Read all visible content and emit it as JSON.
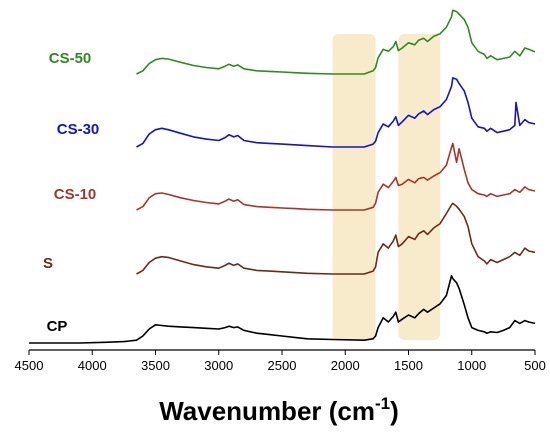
{
  "chart_data": {
    "type": "line",
    "xlabel": "Wavenumber (cm",
    "xlabel_sup": "-1",
    "xlabel_end": ")",
    "xlim": [
      4500,
      500
    ],
    "x_reversed": true,
    "y_axis_visible": false,
    "grid": false,
    "xticks": [
      4500,
      4000,
      3500,
      3000,
      2500,
      2000,
      1500,
      1000,
      500
    ],
    "xtick_labels": [
      "4500",
      "4000",
      "3500",
      "3000",
      "2500",
      "2000",
      "1500",
      "1000",
      "500"
    ],
    "highlight_regions": [
      {
        "x": [
          2100,
          1760
        ],
        "color": "#f8ebcb"
      },
      {
        "x": [
          1580,
          1250
        ],
        "color": "#f8ebcb"
      }
    ],
    "series": [
      {
        "name": "CS-50",
        "color": "#2e8b1e",
        "x": [
          3650,
          3600,
          3550,
          3500,
          3450,
          3400,
          3300,
          3200,
          3100,
          3000,
          2950,
          2920,
          2880,
          2850,
          2800,
          2700,
          2600,
          2500,
          2400,
          2300,
          2100,
          1850,
          1780,
          1760,
          1740,
          1700,
          1660,
          1620,
          1600,
          1580,
          1550,
          1500,
          1450,
          1420,
          1380,
          1350,
          1300,
          1250,
          1200,
          1160,
          1150,
          1120,
          1100,
          1060,
          1030,
          1000,
          950,
          900,
          880,
          850,
          800,
          750,
          700,
          660,
          620,
          580,
          550,
          500
        ],
        "y": [
          0.0,
          0.05,
          0.16,
          0.22,
          0.24,
          0.23,
          0.18,
          0.13,
          0.1,
          0.08,
          0.12,
          0.15,
          0.12,
          0.14,
          0.08,
          0.05,
          0.04,
          0.03,
          0.02,
          0.01,
          0.0,
          0.0,
          0.05,
          0.1,
          0.25,
          0.38,
          0.35,
          0.42,
          0.5,
          0.36,
          0.4,
          0.48,
          0.45,
          0.52,
          0.55,
          0.5,
          0.58,
          0.62,
          0.72,
          0.88,
          0.98,
          0.96,
          0.92,
          0.84,
          0.72,
          0.48,
          0.35,
          0.3,
          0.24,
          0.28,
          0.22,
          0.24,
          0.26,
          0.35,
          0.28,
          0.4,
          0.38,
          0.34
        ]
      },
      {
        "name": "CS-30",
        "color": "#1212cf",
        "x": [
          3650,
          3600,
          3550,
          3500,
          3450,
          3400,
          3300,
          3200,
          3100,
          3000,
          2950,
          2920,
          2880,
          2850,
          2800,
          2700,
          2600,
          2500,
          2400,
          2300,
          2100,
          1850,
          1780,
          1760,
          1740,
          1700,
          1660,
          1620,
          1600,
          1580,
          1550,
          1500,
          1450,
          1420,
          1380,
          1350,
          1300,
          1250,
          1200,
          1160,
          1150,
          1120,
          1100,
          1060,
          1030,
          1000,
          950,
          900,
          880,
          850,
          800,
          750,
          700,
          660,
          650,
          620,
          580,
          550,
          500
        ],
        "y": [
          0.0,
          0.05,
          0.18,
          0.24,
          0.26,
          0.24,
          0.19,
          0.14,
          0.11,
          0.09,
          0.13,
          0.17,
          0.14,
          0.16,
          0.09,
          0.06,
          0.05,
          0.04,
          0.03,
          0.02,
          0.0,
          0.0,
          0.04,
          0.08,
          0.2,
          0.32,
          0.28,
          0.36,
          0.42,
          0.3,
          0.35,
          0.44,
          0.4,
          0.46,
          0.5,
          0.45,
          0.52,
          0.56,
          0.66,
          0.84,
          0.96,
          0.94,
          0.88,
          0.78,
          0.62,
          0.4,
          0.28,
          0.26,
          0.22,
          0.26,
          0.2,
          0.22,
          0.24,
          0.3,
          0.62,
          0.3,
          0.38,
          0.34,
          0.32
        ]
      },
      {
        "name": "CS-10",
        "color": "#a8342b",
        "x": [
          3650,
          3600,
          3550,
          3500,
          3450,
          3400,
          3300,
          3200,
          3100,
          3000,
          2950,
          2920,
          2880,
          2850,
          2800,
          2700,
          2600,
          2500,
          2400,
          2300,
          2100,
          1850,
          1780,
          1760,
          1740,
          1700,
          1660,
          1620,
          1600,
          1580,
          1550,
          1500,
          1450,
          1420,
          1380,
          1350,
          1300,
          1250,
          1200,
          1160,
          1150,
          1120,
          1100,
          1060,
          1030,
          1000,
          950,
          900,
          880,
          850,
          800,
          750,
          700,
          660,
          620,
          580,
          550,
          500
        ],
        "y": [
          0.0,
          0.05,
          0.18,
          0.24,
          0.25,
          0.23,
          0.18,
          0.14,
          0.11,
          0.09,
          0.13,
          0.16,
          0.13,
          0.15,
          0.08,
          0.05,
          0.04,
          0.03,
          0.02,
          0.01,
          0.0,
          0.0,
          0.04,
          0.1,
          0.26,
          0.38,
          0.33,
          0.42,
          0.48,
          0.36,
          0.38,
          0.45,
          0.4,
          0.46,
          0.48,
          0.44,
          0.5,
          0.55,
          0.66,
          0.92,
          0.98,
          0.7,
          0.9,
          0.6,
          0.4,
          0.3,
          0.24,
          0.22,
          0.2,
          0.24,
          0.2,
          0.22,
          0.24,
          0.3,
          0.26,
          0.34,
          0.3,
          0.28
        ]
      },
      {
        "name": "S",
        "color": "#6b2a1c",
        "x": [
          3650,
          3600,
          3550,
          3500,
          3450,
          3400,
          3300,
          3200,
          3100,
          3000,
          2950,
          2920,
          2880,
          2850,
          2800,
          2700,
          2600,
          2500,
          2400,
          2300,
          2100,
          1850,
          1780,
          1760,
          1740,
          1700,
          1660,
          1620,
          1600,
          1580,
          1550,
          1500,
          1450,
          1420,
          1380,
          1350,
          1300,
          1250,
          1200,
          1160,
          1150,
          1120,
          1100,
          1060,
          1030,
          1000,
          950,
          900,
          880,
          850,
          800,
          750,
          700,
          660,
          620,
          580,
          550,
          500
        ],
        "y": [
          0.0,
          0.05,
          0.16,
          0.22,
          0.24,
          0.23,
          0.18,
          0.13,
          0.1,
          0.08,
          0.12,
          0.15,
          0.12,
          0.14,
          0.08,
          0.05,
          0.04,
          0.03,
          0.02,
          0.01,
          0.0,
          0.0,
          0.04,
          0.1,
          0.3,
          0.42,
          0.36,
          0.46,
          0.54,
          0.38,
          0.42,
          0.52,
          0.48,
          0.56,
          0.6,
          0.55,
          0.64,
          0.7,
          0.84,
          0.96,
          0.98,
          0.94,
          0.9,
          0.8,
          0.66,
          0.42,
          0.24,
          0.18,
          0.14,
          0.2,
          0.16,
          0.2,
          0.24,
          0.3,
          0.26,
          0.36,
          0.32,
          0.3
        ]
      },
      {
        "name": "CP",
        "color": "#000000",
        "x": [
          4500,
          4300,
          4100,
          3900,
          3750,
          3650,
          3600,
          3550,
          3500,
          3450,
          3400,
          3300,
          3200,
          3100,
          3000,
          2950,
          2920,
          2880,
          2850,
          2800,
          2700,
          2600,
          2500,
          2400,
          2300,
          2100,
          1850,
          1780,
          1760,
          1740,
          1700,
          1660,
          1620,
          1600,
          1580,
          1550,
          1500,
          1450,
          1420,
          1380,
          1350,
          1300,
          1250,
          1200,
          1160,
          1150,
          1120,
          1100,
          1060,
          1030,
          1000,
          950,
          900,
          880,
          850,
          800,
          750,
          700,
          660,
          620,
          580,
          550,
          500
        ],
        "y": [
          0.0,
          0.0,
          0.0,
          0.01,
          0.02,
          0.04,
          0.1,
          0.2,
          0.26,
          0.25,
          0.24,
          0.23,
          0.22,
          0.21,
          0.2,
          0.22,
          0.24,
          0.22,
          0.23,
          0.18,
          0.14,
          0.12,
          0.1,
          0.08,
          0.06,
          0.05,
          0.04,
          0.06,
          0.1,
          0.22,
          0.36,
          0.3,
          0.38,
          0.44,
          0.3,
          0.34,
          0.4,
          0.36,
          0.42,
          0.48,
          0.44,
          0.5,
          0.56,
          0.68,
          0.96,
          0.92,
          0.86,
          0.78,
          0.55,
          0.36,
          0.22,
          0.18,
          0.16,
          0.14,
          0.16,
          0.15,
          0.18,
          0.22,
          0.32,
          0.28,
          0.32,
          0.3,
          0.28
        ]
      }
    ]
  }
}
